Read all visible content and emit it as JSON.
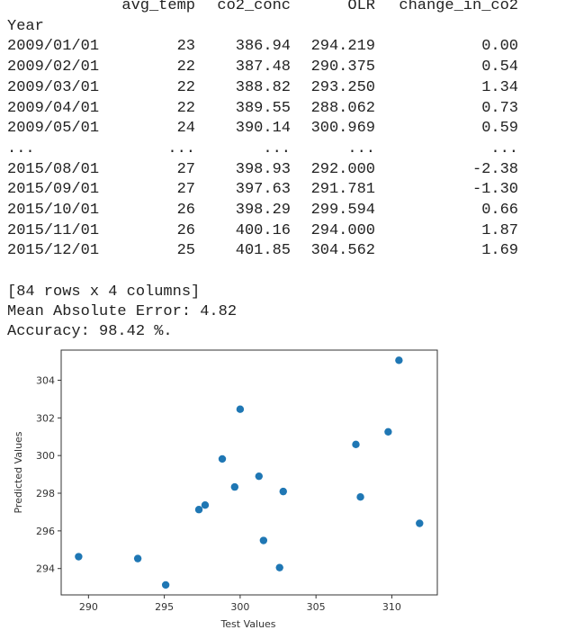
{
  "table": {
    "index_name": "Year",
    "columns": [
      "avg_temp",
      "co2_conc",
      "OLR",
      "change_in_co2"
    ],
    "rows": [
      [
        "2009/01/01",
        "23",
        "386.94",
        "294.219",
        "0.00"
      ],
      [
        "2009/02/01",
        "22",
        "387.48",
        "290.375",
        "0.54"
      ],
      [
        "2009/03/01",
        "22",
        "388.82",
        "293.250",
        "1.34"
      ],
      [
        "2009/04/01",
        "22",
        "389.55",
        "288.062",
        "0.73"
      ],
      [
        "2009/05/01",
        "24",
        "390.14",
        "300.969",
        "0.59"
      ],
      [
        "...",
        "...",
        "...",
        "...",
        "..."
      ],
      [
        "2015/08/01",
        "27",
        "398.93",
        "292.000",
        "-2.38"
      ],
      [
        "2015/09/01",
        "27",
        "397.63",
        "291.781",
        "-1.30"
      ],
      [
        "2015/10/01",
        "26",
        "398.29",
        "299.594",
        "0.66"
      ],
      [
        "2015/11/01",
        "26",
        "400.16",
        "294.000",
        "1.87"
      ],
      [
        "2015/12/01",
        "25",
        "401.85",
        "304.562",
        "1.69"
      ]
    ]
  },
  "lines": [
    "[84 rows x 4 columns]",
    "Mean Absolute Error: 4.82",
    "Accuracy: 98.42 %."
  ],
  "chart_data": {
    "type": "scatter",
    "xlabel": "Test Values",
    "ylabel": "Predicted Values",
    "color": "#1f77b4",
    "x": [
      289.35,
      293.25,
      295.09,
      297.28,
      297.69,
      298.82,
      299.64,
      300.0,
      301.24,
      301.54,
      302.6,
      302.84,
      307.63,
      307.93,
      309.76,
      310.47,
      311.83
    ],
    "values": [
      294.63,
      294.53,
      293.13,
      297.13,
      297.37,
      299.82,
      298.33,
      302.46,
      298.9,
      295.49,
      294.05,
      298.09,
      300.59,
      297.8,
      301.26,
      305.06,
      296.4
    ],
    "xlim": [
      288.2,
      313.0
    ],
    "ylim": [
      292.6,
      305.6
    ],
    "xticks": [
      290,
      295,
      300,
      305,
      310
    ],
    "yticks": [
      294,
      296,
      298,
      300,
      302,
      304
    ]
  }
}
